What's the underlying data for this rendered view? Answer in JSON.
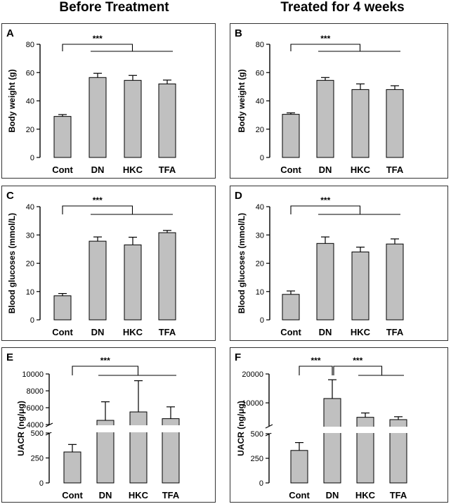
{
  "column_titles": [
    "Before Treatment",
    "Treated for 4 weeks"
  ],
  "colors": {
    "bar": "#c0c0c0",
    "stroke": "#000000",
    "frame": "#333333"
  },
  "chart_data": [
    {
      "panel": "A",
      "type": "bar",
      "ylabel": "Body weight (g)",
      "categories": [
        "Cont",
        "DN",
        "HKC",
        "TFA"
      ],
      "values": [
        29,
        56.5,
        54.5,
        52
      ],
      "errors": [
        1.3,
        3,
        3.5,
        2.7
      ],
      "ylim": [
        0,
        80
      ],
      "yticks": [
        0,
        20,
        40,
        60,
        80
      ],
      "significance": [
        {
          "label": "***",
          "from": 0,
          "to": [
            1,
            3
          ]
        }
      ]
    },
    {
      "panel": "B",
      "type": "bar",
      "ylabel": "Body weight (g)",
      "categories": [
        "Cont",
        "DN",
        "HKC",
        "TFA"
      ],
      "values": [
        30.5,
        54.5,
        48,
        48
      ],
      "errors": [
        1,
        2,
        4,
        2.7
      ],
      "ylim": [
        0,
        80
      ],
      "yticks": [
        0,
        20,
        40,
        60,
        80
      ],
      "significance": [
        {
          "label": "***",
          "from": 0,
          "to": [
            1,
            3
          ]
        }
      ]
    },
    {
      "panel": "C",
      "type": "bar",
      "ylabel": "Blood glucoses (mmol/L)",
      "categories": [
        "Cont",
        "DN",
        "HKC",
        "TFA"
      ],
      "values": [
        8.5,
        27.8,
        26.5,
        30.8
      ],
      "errors": [
        0.8,
        1.5,
        2.7,
        0.8
      ],
      "ylim": [
        0,
        40
      ],
      "yticks": [
        0,
        10,
        20,
        30,
        40
      ],
      "significance": [
        {
          "label": "***",
          "from": 0,
          "to": [
            1,
            3
          ]
        }
      ]
    },
    {
      "panel": "D",
      "type": "bar",
      "ylabel": "Blood glucoses (mmol/L)",
      "categories": [
        "Cont",
        "DN",
        "HKC",
        "TFA"
      ],
      "values": [
        9,
        27,
        24,
        26.8
      ],
      "errors": [
        1.2,
        2.3,
        1.7,
        1.8
      ],
      "ylim": [
        0,
        40
      ],
      "yticks": [
        0,
        10,
        20,
        30,
        40
      ],
      "significance": [
        {
          "label": "***",
          "from": 0,
          "to": [
            1,
            3
          ]
        }
      ]
    },
    {
      "panel": "E",
      "type": "bar",
      "ylabel": "UACR (ng/μg)",
      "categories": [
        "Cont",
        "DN",
        "HKC",
        "TFA"
      ],
      "values": [
        310,
        4500,
        5500,
        4700
      ],
      "errors": [
        75,
        2200,
        3700,
        1400
      ],
      "broken_axis": {
        "lower": [
          0,
          500
        ],
        "upper": [
          4000,
          10000
        ]
      },
      "yticks_lower": [
        0,
        250,
        500
      ],
      "yticks_upper": [
        4000,
        6000,
        8000,
        10000
      ],
      "significance": [
        {
          "label": "***",
          "from": 0,
          "to": [
            1,
            3
          ]
        }
      ]
    },
    {
      "panel": "F",
      "type": "bar",
      "ylabel": "UACR (ng/μg)",
      "categories": [
        "Cont",
        "DN",
        "HKC",
        "TFA"
      ],
      "values": [
        330,
        11500,
        5000,
        4200
      ],
      "errors": [
        80,
        6500,
        1500,
        1000
      ],
      "broken_axis": {
        "lower": [
          0,
          500
        ],
        "upper": [
          2000,
          20000
        ]
      },
      "yticks_lower": [
        0,
        250,
        500
      ],
      "yticks_upper": [
        10000,
        20000
      ],
      "significance": [
        {
          "label": "***",
          "from": 0,
          "to": [
            1,
            1
          ]
        },
        {
          "label": "***",
          "from": 1,
          "to": [
            2,
            3
          ]
        }
      ]
    }
  ]
}
